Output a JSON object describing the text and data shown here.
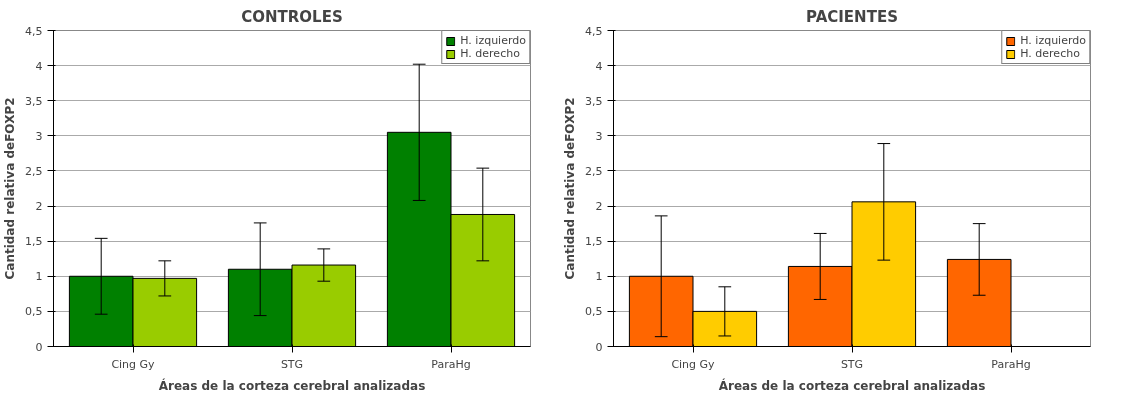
{
  "chart_data": [
    {
      "type": "bar",
      "title": "CONTROLES",
      "xlabel": "Áreas de la corteza cerebral analizadas",
      "ylabel": "Cantidad relativa deFOXP2",
      "categories": [
        "Cing Gy",
        "STG",
        "ParaHg"
      ],
      "series": [
        {
          "name": "H. izquierdo",
          "color": "#008000",
          "values": [
            1.0,
            1.1,
            3.05
          ],
          "errors": [
            0.54,
            0.66,
            0.97
          ]
        },
        {
          "name": "H. derecho",
          "color": "#99cc00",
          "values": [
            0.97,
            1.16,
            1.88
          ],
          "errors": [
            0.25,
            0.23,
            0.66
          ]
        }
      ],
      "ylim": [
        0,
        4.5
      ],
      "yticks": [
        0,
        {
          "value": 0.5,
          "label": "0,5"
        },
        1,
        {
          "value": 1.5,
          "label": "1,5"
        },
        2,
        {
          "value": 2.5,
          "label": "2,5"
        },
        3,
        {
          "value": 3.5,
          "label": "3,5"
        },
        4,
        {
          "value": 4.5,
          "label": "4,5"
        }
      ],
      "grid": "y",
      "legend": "top right"
    },
    {
      "type": "bar",
      "title": "PACIENTES",
      "xlabel": "Áreas de la corteza cerebral analizadas",
      "ylabel": "Cantidad relativa deFOXP2",
      "categories": [
        "Cing Gy",
        "STG",
        "ParaHg"
      ],
      "series": [
        {
          "name": "H. izquierdo",
          "color": "#ff6600",
          "values": [
            1.0,
            1.14,
            1.24
          ],
          "errors": [
            0.86,
            0.47,
            0.51
          ]
        },
        {
          "name": "H. derecho",
          "color": "#ffcc00",
          "values": [
            0.5,
            2.06,
            null
          ],
          "errors": [
            0.35,
            0.83,
            null
          ]
        }
      ],
      "ylim": [
        0,
        4.5
      ],
      "yticks": [
        0,
        {
          "value": 0.5,
          "label": "0,5"
        },
        1,
        {
          "value": 1.5,
          "label": "1,5"
        },
        2,
        {
          "value": 2.5,
          "label": "2,5"
        },
        3,
        {
          "value": 3.5,
          "label": "3,5"
        },
        4,
        {
          "value": 4.5,
          "label": "4,5"
        }
      ],
      "grid": "y",
      "legend": "top right"
    }
  ]
}
